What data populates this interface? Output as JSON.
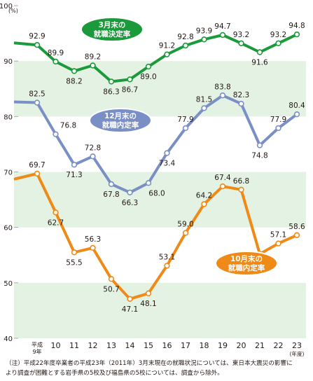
{
  "chart_data": {
    "type": "line",
    "title": "",
    "xlabel": "",
    "ylabel": "",
    "y_unit": "(%)",
    "x_unit": "(年度)",
    "ylim": [
      40,
      100
    ],
    "yticks": [
      "40",
      "50",
      "60",
      "70",
      "80",
      "90",
      "100"
    ],
    "grid": "alternating green horizontal bands",
    "categories": [
      "平成\n9年",
      "10",
      "11",
      "12",
      "13",
      "14",
      "15",
      "16",
      "17",
      "18",
      "19",
      "20",
      "21",
      "22",
      "23"
    ],
    "series": [
      {
        "name": "3月末の\n就職決定率",
        "color": "#1a9a3a",
        "values": [
          92.9,
          89.9,
          88.2,
          89.2,
          86.3,
          86.7,
          89.0,
          91.2,
          92.8,
          93.9,
          94.7,
          93.2,
          91.6,
          93.2,
          94.8
        ],
        "labels": [
          "92.9",
          "89.9",
          "88.2",
          "89.2",
          "86.3",
          "86.7",
          "89.0",
          "91.2",
          "92.8",
          "93.9",
          "94.7",
          "93.2",
          "91.6",
          "93.2",
          "94.8"
        ]
      },
      {
        "name": "12月末の\n就職内定率",
        "color": "#7b8fc7",
        "values": [
          82.5,
          76.8,
          71.3,
          72.8,
          67.8,
          66.3,
          68.0,
          73.4,
          77.9,
          81.5,
          83.8,
          82.3,
          74.8,
          77.9,
          80.4
        ],
        "labels": [
          "82.5",
          "76.8",
          "71.3",
          "72.8",
          "67.8",
          "66.3",
          "68.0",
          "73.4",
          "77.9",
          "81.5",
          "83.8",
          "82.3",
          "74.8",
          "77.9",
          "80.4"
        ]
      },
      {
        "name": "10月末の\n就職内定率",
        "color": "#ef8a16",
        "values": [
          69.7,
          62.7,
          55.5,
          56.3,
          50.7,
          47.1,
          48.1,
          53.1,
          59.0,
          64.2,
          67.4,
          66.8,
          55.2,
          57.1,
          58.6
        ],
        "labels": [
          "69.7",
          "62.7",
          "55.5",
          "56.3",
          "50.7",
          "47.1",
          "48.1",
          "53.1",
          "59.0",
          "64.2",
          "67.4",
          "66.8",
          "55.2",
          "57.1",
          "58.6"
        ]
      }
    ]
  },
  "colors": {
    "band": "#e3f2e3",
    "axis_text": "#231815"
  },
  "note": {
    "line1": "（注）平成22年度卒業者の平成23年（2011年）3月末現在の就職状況については、東日本大震災の影響に",
    "line2": "より調査が困難とする岩手県の5校及び福島県の5校については、調査から除外。"
  }
}
